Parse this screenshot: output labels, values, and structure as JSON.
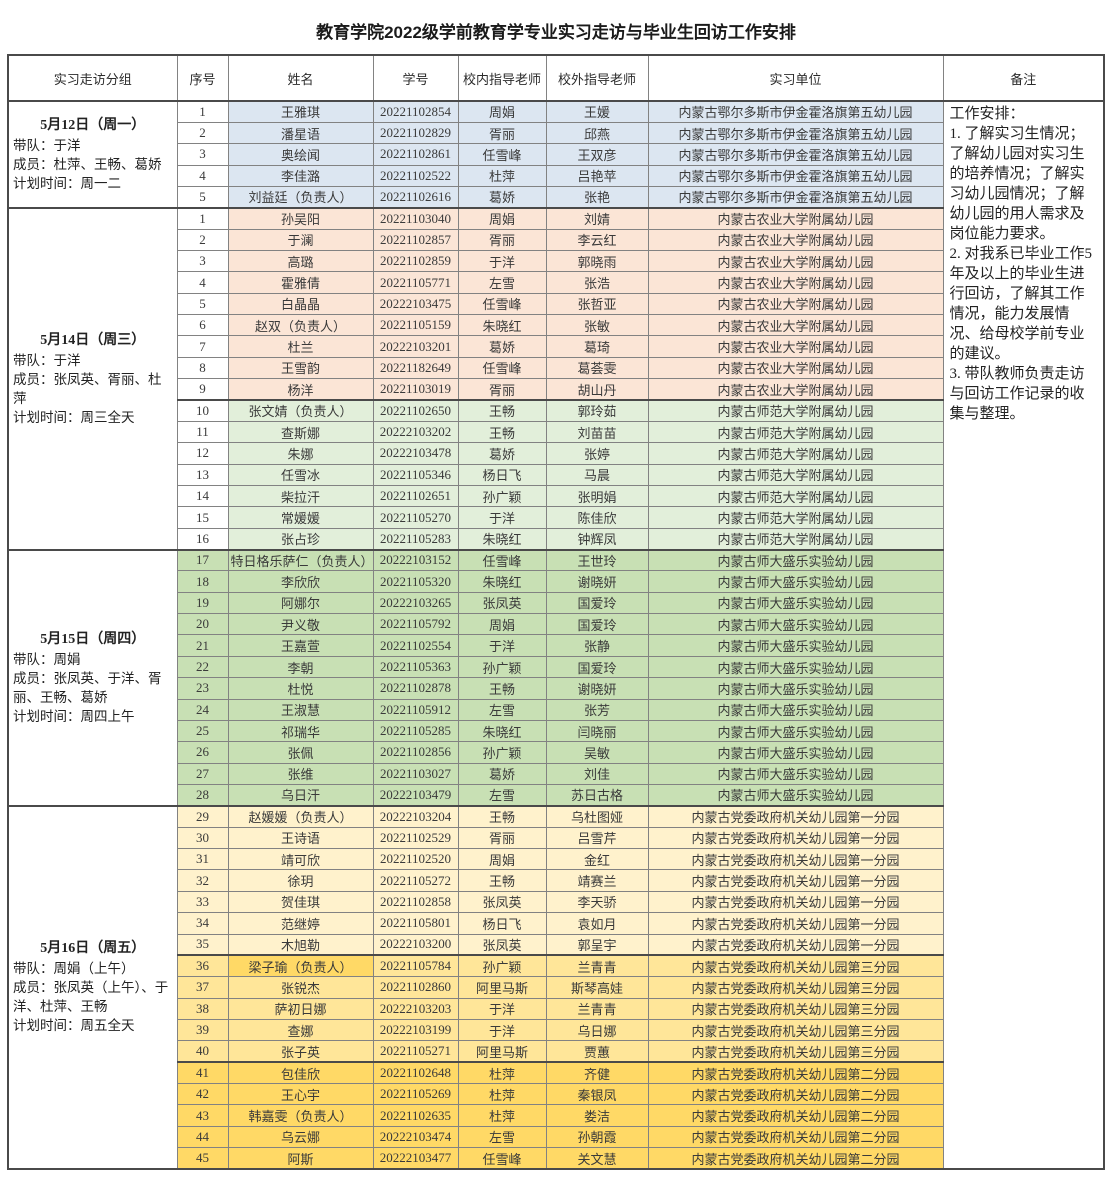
{
  "title": "教育学院2022级学前教育学专业实习走访与毕业生回访工作安排",
  "columns": [
    "实习走访分组",
    "序号",
    "姓名",
    "学号",
    "校内指导老师",
    "校外指导老师",
    "实习单位",
    "备注"
  ],
  "colors": {
    "blue": "#DCE6F1",
    "salmon": "#FBE5D6",
    "greenL": "#E2EFDA",
    "green": "#C8E0B4",
    "yellowL": "#FFF2CC",
    "yellowM": "#FFE699",
    "gold": "#FFD966"
  },
  "remarks": [
    "工作安排：",
    "1. 了解实习生情况；了解幼儿园对实习生的培养情况；了解实习幼儿园情况；了解幼儿园的用人需求及岗位能力要求。",
    "2. 对我系已毕业工作5年及以上的毕业生进行回访，了解其工作情况，能力发展情况、给母校学前专业的建议。",
    "3. 带队教师负责走访与回访工作记录的收集与整理。"
  ],
  "groups": [
    {
      "date": "5月12日（周一）",
      "info": [
        "带队：于洋",
        "成员：杜萍、王畅、葛娇",
        "计划时间：周一二"
      ],
      "rows": [
        {
          "no": "1",
          "name": "王雅琪",
          "sid": "20221102854",
          "tin": "周娟",
          "tout": "王媛",
          "unit": "内蒙古鄂尔多斯市伊金霍洛旗第五幼儿园",
          "c": "blue"
        },
        {
          "no": "2",
          "name": "潘星语",
          "sid": "20221102829",
          "tin": "胥丽",
          "tout": "邱燕",
          "unit": "内蒙古鄂尔多斯市伊金霍洛旗第五幼儿园",
          "c": "blue"
        },
        {
          "no": "3",
          "name": "奥绘闻",
          "sid": "20221102861",
          "tin": "任雪峰",
          "tout": "王双彦",
          "unit": "内蒙古鄂尔多斯市伊金霍洛旗第五幼儿园",
          "c": "blue"
        },
        {
          "no": "4",
          "name": "李佳潞",
          "sid": "20221102522",
          "tin": "杜萍",
          "tout": "吕艳苹",
          "unit": "内蒙古鄂尔多斯市伊金霍洛旗第五幼儿园",
          "c": "blue"
        },
        {
          "no": "5",
          "name": "刘益廷（负责人）",
          "sid": "20221102616",
          "tin": "葛娇",
          "tout": "张艳",
          "unit": "内蒙古鄂尔多斯市伊金霍洛旗第五幼儿园",
          "c": "blue"
        }
      ]
    },
    {
      "date": "5月14日（周三）",
      "info": [
        "带队：于洋",
        "成员：张凤英、胥丽、杜萍",
        "计划时间：周三全天"
      ],
      "rows": [
        {
          "no": "1",
          "name": "孙吴阳",
          "sid": "20221103040",
          "tin": "周娟",
          "tout": "刘婧",
          "unit": "内蒙古农业大学附属幼儿园",
          "c": "salmon"
        },
        {
          "no": "2",
          "name": "于澜",
          "sid": "20221102857",
          "tin": "胥丽",
          "tout": "李云红",
          "unit": "内蒙古农业大学附属幼儿园",
          "c": "salmon"
        },
        {
          "no": "3",
          "name": "高璐",
          "sid": "20221102859",
          "tin": "于洋",
          "tout": "郭晓雨",
          "unit": "内蒙古农业大学附属幼儿园",
          "c": "salmon"
        },
        {
          "no": "4",
          "name": "霍雅倩",
          "sid": "20221105771",
          "tin": "左雪",
          "tout": "张浩",
          "unit": "内蒙古农业大学附属幼儿园",
          "c": "salmon"
        },
        {
          "no": "5",
          "name": "白晶晶",
          "sid": "20222103475",
          "tin": "任雪峰",
          "tout": "张哲亚",
          "unit": "内蒙古农业大学附属幼儿园",
          "c": "salmon"
        },
        {
          "no": "6",
          "name": "赵双（负责人）",
          "sid": "20221105159",
          "tin": "朱晓红",
          "tout": "张敏",
          "unit": "内蒙古农业大学附属幼儿园",
          "c": "salmon"
        },
        {
          "no": "7",
          "name": "杜兰",
          "sid": "20222103201",
          "tin": "葛娇",
          "tout": "葛琦",
          "unit": "内蒙古农业大学附属幼儿园",
          "c": "salmon"
        },
        {
          "no": "8",
          "name": "王雪韵",
          "sid": "20221182649",
          "tin": "任雪峰",
          "tout": "葛荟雯",
          "unit": "内蒙古农业大学附属幼儿园",
          "c": "salmon"
        },
        {
          "no": "9",
          "name": "杨洋",
          "sid": "20221103019",
          "tin": "胥丽",
          "tout": "胡山丹",
          "unit": "内蒙古农业大学附属幼儿园",
          "c": "salmon"
        },
        {
          "no": "10",
          "name": "张文婧（负责人）",
          "sid": "20221102650",
          "tin": "王畅",
          "tout": "郭玲茹",
          "unit": "内蒙古师范大学附属幼儿园",
          "c": "greenL",
          "block": true
        },
        {
          "no": "11",
          "name": "查斯娜",
          "sid": "20222103202",
          "tin": "王畅",
          "tout": "刘苗苗",
          "unit": "内蒙古师范大学附属幼儿园",
          "c": "greenL"
        },
        {
          "no": "12",
          "name": "朱娜",
          "sid": "20222103478",
          "tin": "葛娇",
          "tout": "张婷",
          "unit": "内蒙古师范大学附属幼儿园",
          "c": "greenL"
        },
        {
          "no": "13",
          "name": "任雪冰",
          "sid": "20221105346",
          "tin": "杨日飞",
          "tout": "马晨",
          "unit": "内蒙古师范大学附属幼儿园",
          "c": "greenL"
        },
        {
          "no": "14",
          "name": "柴拉汗",
          "sid": "20221102651",
          "tin": "孙广颖",
          "tout": "张明娟",
          "unit": "内蒙古师范大学附属幼儿园",
          "c": "greenL"
        },
        {
          "no": "15",
          "name": "常媛媛",
          "sid": "20221105270",
          "tin": "于洋",
          "tout": "陈佳欣",
          "unit": "内蒙古师范大学附属幼儿园",
          "c": "greenL"
        },
        {
          "no": "16",
          "name": "张占珍",
          "sid": "20221105283",
          "tin": "朱晓红",
          "tout": "钟辉凤",
          "unit": "内蒙古师范大学附属幼儿园",
          "c": "greenL"
        }
      ]
    },
    {
      "date": "5月15日（周四）",
      "info": [
        "带队：周娟",
        "成员：张凤英、于洋、胥丽、王畅、葛娇",
        "计划时间：周四上午"
      ],
      "rows": [
        {
          "no": "17",
          "name": "特日格乐萨仁（负责人）",
          "sid": "20222103152",
          "tin": "任雪峰",
          "tout": "王世玲",
          "unit": "内蒙古师大盛乐实验幼儿园",
          "c": "green",
          "nc": "green"
        },
        {
          "no": "18",
          "name": "李欣欣",
          "sid": "20221105320",
          "tin": "朱晓红",
          "tout": "谢晓妍",
          "unit": "内蒙古师大盛乐实验幼儿园",
          "c": "green",
          "nc": "green"
        },
        {
          "no": "19",
          "name": "阿娜尔",
          "sid": "20222103265",
          "tin": "张凤英",
          "tout": "国爱玲",
          "unit": "内蒙古师大盛乐实验幼儿园",
          "c": "green",
          "nc": "green"
        },
        {
          "no": "20",
          "name": "尹义敬",
          "sid": "20221105792",
          "tin": "周娟",
          "tout": "国爱玲",
          "unit": "内蒙古师大盛乐实验幼儿园",
          "c": "green",
          "nc": "green"
        },
        {
          "no": "21",
          "name": "王嘉萱",
          "sid": "20221102554",
          "tin": "于洋",
          "tout": "张静",
          "unit": "内蒙古师大盛乐实验幼儿园",
          "c": "green",
          "nc": "green"
        },
        {
          "no": "22",
          "name": "李朝",
          "sid": "20221105363",
          "tin": "孙广颖",
          "tout": "国爱玲",
          "unit": "内蒙古师大盛乐实验幼儿园",
          "c": "green",
          "nc": "green"
        },
        {
          "no": "23",
          "name": "杜悦",
          "sid": "20221102878",
          "tin": "王畅",
          "tout": "谢晓妍",
          "unit": "内蒙古师大盛乐实验幼儿园",
          "c": "green",
          "nc": "green"
        },
        {
          "no": "24",
          "name": "王淑慧",
          "sid": "20221105912",
          "tin": "左雪",
          "tout": "张芳",
          "unit": "内蒙古师大盛乐实验幼儿园",
          "c": "green",
          "nc": "green"
        },
        {
          "no": "25",
          "name": "祁瑞华",
          "sid": "20221105285",
          "tin": "朱晓红",
          "tout": "闫晓丽",
          "unit": "内蒙古师大盛乐实验幼儿园",
          "c": "green",
          "nc": "green"
        },
        {
          "no": "26",
          "name": "张佩",
          "sid": "20221102856",
          "tin": "孙广颖",
          "tout": "吴敏",
          "unit": "内蒙古师大盛乐实验幼儿园",
          "c": "green",
          "nc": "green"
        },
        {
          "no": "27",
          "name": "张维",
          "sid": "20221103027",
          "tin": "葛娇",
          "tout": "刘佳",
          "unit": "内蒙古师大盛乐实验幼儿园",
          "c": "green",
          "nc": "green"
        },
        {
          "no": "28",
          "name": "乌日汗",
          "sid": "20222103479",
          "tin": "左雪",
          "tout": "苏日古格",
          "unit": "内蒙古师大盛乐实验幼儿园",
          "c": "green",
          "nc": "green"
        }
      ]
    },
    {
      "date": "5月16日（周五）",
      "info": [
        "带队：周娟（上午）",
        "成员：张凤英（上午）、于洋、杜萍、王畅",
        "计划时间：周五全天"
      ],
      "rows": [
        {
          "no": "29",
          "name": "赵媛媛（负责人）",
          "sid": "20222103204",
          "tin": "王畅",
          "tout": "乌杜图娅",
          "unit": "内蒙古党委政府机关幼儿园第一分园",
          "c": "yellowL",
          "nc": "yellowL"
        },
        {
          "no": "30",
          "name": "王诗语",
          "sid": "20221102529",
          "tin": "胥丽",
          "tout": "吕雪芹",
          "unit": "内蒙古党委政府机关幼儿园第一分园",
          "c": "yellowL",
          "nc": "yellowL"
        },
        {
          "no": "31",
          "name": "靖可欣",
          "sid": "20221102520",
          "tin": "周娟",
          "tout": "金红",
          "unit": "内蒙古党委政府机关幼儿园第一分园",
          "c": "yellowL",
          "nc": "yellowL"
        },
        {
          "no": "32",
          "name": "徐玥",
          "sid": "20221105272",
          "tin": "王畅",
          "tout": "靖赛兰",
          "unit": "内蒙古党委政府机关幼儿园第一分园",
          "c": "yellowL",
          "nc": "yellowL"
        },
        {
          "no": "33",
          "name": "贺佳琪",
          "sid": "20221102858",
          "tin": "张凤英",
          "tout": "李天骄",
          "unit": "内蒙古党委政府机关幼儿园第一分园",
          "c": "yellowL",
          "nc": "yellowL"
        },
        {
          "no": "34",
          "name": "范继婷",
          "sid": "20221105801",
          "tin": "杨日飞",
          "tout": "袁如月",
          "unit": "内蒙古党委政府机关幼儿园第一分园",
          "c": "yellowL",
          "nc": "yellowL"
        },
        {
          "no": "35",
          "name": "木旭勒",
          "sid": "20222103200",
          "tin": "张凤英",
          "tout": "郭呈宇",
          "unit": "内蒙古党委政府机关幼儿园第一分园",
          "c": "yellowL",
          "nc": "yellowL"
        },
        {
          "no": "36",
          "name": "梁子瑜（负责人）",
          "sid": "20221105784",
          "tin": "孙广颖",
          "tout": "兰青青",
          "unit": "内蒙古党委政府机关幼儿园第三分园",
          "c": "yellowM",
          "nc": "yellowM",
          "nameC": "gold",
          "block": true
        },
        {
          "no": "37",
          "name": "张锐杰",
          "sid": "20221102860",
          "tin": "阿里马斯",
          "tout": "斯琴高娃",
          "unit": "内蒙古党委政府机关幼儿园第三分园",
          "c": "yellowM",
          "nc": "yellowM"
        },
        {
          "no": "38",
          "name": "萨初日娜",
          "sid": "20222103203",
          "tin": "于洋",
          "tout": "兰青青",
          "unit": "内蒙古党委政府机关幼儿园第三分园",
          "c": "yellowM",
          "nc": "yellowM"
        },
        {
          "no": "39",
          "name": "查娜",
          "sid": "20222103199",
          "tin": "于洋",
          "tout": "乌日娜",
          "unit": "内蒙古党委政府机关幼儿园第三分园",
          "c": "yellowM",
          "nc": "yellowM"
        },
        {
          "no": "40",
          "name": "张子英",
          "sid": "20221105271",
          "tin": "阿里马斯",
          "tout": "贾蕙",
          "unit": "内蒙古党委政府机关幼儿园第三分园",
          "c": "yellowM",
          "nc": "yellowM"
        },
        {
          "no": "41",
          "name": "包佳欣",
          "sid": "20221102648",
          "tin": "杜萍",
          "tout": "齐健",
          "unit": "内蒙古党委政府机关幼儿园第二分园",
          "c": "gold",
          "nc": "gold",
          "block": true
        },
        {
          "no": "42",
          "name": "王心宇",
          "sid": "20221105269",
          "tin": "杜萍",
          "tout": "秦银凤",
          "unit": "内蒙古党委政府机关幼儿园第二分园",
          "c": "gold",
          "nc": "gold"
        },
        {
          "no": "43",
          "name": "韩嘉雯（负责人）",
          "sid": "20221102635",
          "tin": "杜萍",
          "tout": "娄洁",
          "unit": "内蒙古党委政府机关幼儿园第二分园",
          "c": "gold",
          "nc": "gold"
        },
        {
          "no": "44",
          "name": "乌云娜",
          "sid": "20222103474",
          "tin": "左雪",
          "tout": "孙朝霞",
          "unit": "内蒙古党委政府机关幼儿园第二分园",
          "c": "gold",
          "nc": "gold"
        },
        {
          "no": "45",
          "name": "阿斯",
          "sid": "20222103477",
          "tin": "任雪峰",
          "tout": "关文慧",
          "unit": "内蒙古党委政府机关幼儿园第二分园",
          "c": "gold",
          "nc": "gold"
        }
      ]
    }
  ]
}
